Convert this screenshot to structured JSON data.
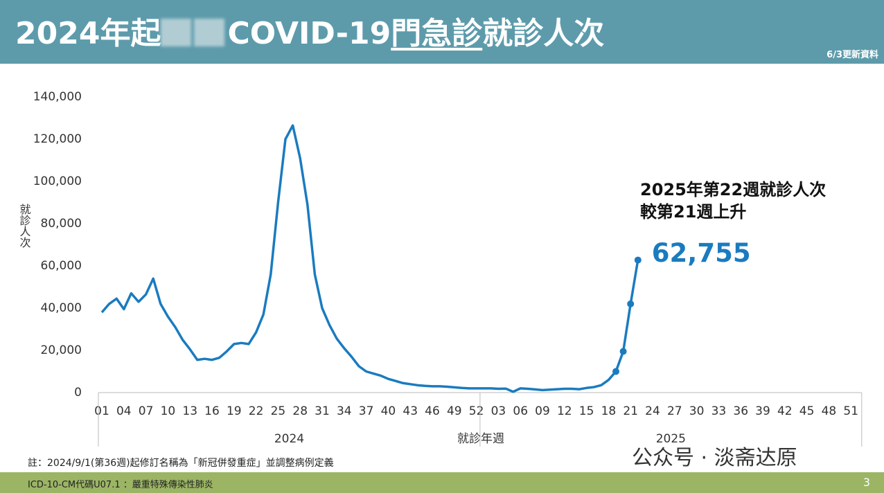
{
  "header": {
    "title_before": "2024年起",
    "title_mid": "COVID-19",
    "title_underlined": "門急診",
    "title_after": "就診人次",
    "update_note": "6/3更新資料"
  },
  "chart_data": {
    "type": "line",
    "y_label": "就診人次",
    "x_label": "就診年週",
    "groups": [
      {
        "label": "2024",
        "count": 52
      },
      {
        "label": "2025",
        "count": 52
      }
    ],
    "categories": [
      "01",
      null,
      null,
      "04",
      null,
      null,
      "07",
      null,
      null,
      "10",
      null,
      null,
      "13",
      null,
      null,
      "16",
      null,
      null,
      "19",
      null,
      null,
      "22",
      null,
      null,
      "25",
      null,
      null,
      "28",
      null,
      null,
      "31",
      null,
      null,
      "34",
      null,
      null,
      "37",
      null,
      null,
      "40",
      null,
      null,
      "43",
      null,
      null,
      "46",
      null,
      null,
      "49",
      null,
      null,
      "52",
      null,
      null,
      "03",
      null,
      null,
      "06",
      null,
      null,
      "09",
      null,
      null,
      "12",
      null,
      null,
      "15",
      null,
      null,
      "18",
      null,
      null,
      "21",
      null,
      null,
      "24",
      null,
      null,
      "27",
      null,
      null,
      "30",
      null,
      null,
      "33",
      null,
      null,
      "36",
      null,
      null,
      "39",
      null,
      null,
      "42",
      null,
      null,
      "45",
      null,
      null,
      "48",
      null,
      null,
      "51",
      null
    ],
    "series": [
      {
        "name": "就診人次",
        "color": "#1a7bbf",
        "values": [
          38000,
          42000,
          44500,
          39500,
          47000,
          43000,
          46500,
          54000,
          42000,
          36000,
          31000,
          25000,
          20500,
          15500,
          16000,
          15500,
          16500,
          19500,
          23000,
          23500,
          23000,
          28500,
          37000,
          56000,
          90000,
          120000,
          126500,
          111000,
          89000,
          56000,
          40000,
          32000,
          25500,
          21000,
          17000,
          12500,
          10000,
          9000,
          8000,
          6500,
          5500,
          4500,
          4000,
          3500,
          3200,
          3000,
          3000,
          2800,
          2500,
          2200,
          2000,
          2000,
          2000,
          2000,
          1800,
          1900,
          400,
          2000,
          1800,
          1500,
          1200,
          1400,
          1600,
          1800,
          1800,
          1600,
          2200,
          2600,
          3500,
          6000,
          10000,
          19500,
          42000,
          62755,
          null,
          null,
          null,
          null,
          null,
          null,
          null,
          null,
          null,
          null,
          null,
          null,
          null,
          null,
          null,
          null,
          null,
          null,
          null,
          null,
          null,
          null,
          null,
          null,
          null,
          null,
          null,
          null,
          null,
          null
        ],
        "value_labels": [
          null,
          null,
          null,
          null,
          null,
          null,
          null,
          null,
          null,
          null,
          null,
          null,
          null,
          null,
          null,
          null,
          null,
          null,
          null,
          null,
          null,
          null,
          null,
          null,
          null,
          null,
          null,
          null,
          null,
          null,
          null,
          null,
          null,
          null,
          null,
          null,
          null,
          null,
          null,
          null,
          null,
          null,
          null,
          null,
          null,
          null,
          null,
          null,
          null,
          null,
          null,
          null,
          null,
          null,
          null,
          null,
          null,
          null,
          null,
          null,
          null,
          null,
          null,
          null,
          null,
          null,
          null,
          null,
          null,
          null,
          null,
          null,
          null,
          "62,755",
          null,
          null,
          null,
          null,
          null,
          null,
          null,
          null,
          null,
          null,
          null,
          null,
          null,
          null,
          null,
          null,
          null,
          null,
          null,
          null,
          null,
          null,
          null,
          null,
          null,
          null,
          null,
          null,
          null,
          null
        ],
        "markers": [
          70,
          71,
          72,
          73
        ]
      }
    ],
    "ylim": [
      0,
      140000
    ],
    "yticks": [
      0,
      {
        "value": 20000,
        "label": "20,000"
      },
      {
        "value": 40000,
        "label": "40,000"
      },
      {
        "value": 60000,
        "label": "60,000"
      },
      {
        "value": 80000,
        "label": "80,000"
      },
      {
        "value": 100000,
        "label": "100,000"
      },
      {
        "value": 120000,
        "label": "120,000"
      },
      {
        "value": 140000,
        "label": "140,000"
      }
    ],
    "annotation": [
      "2025年第22週就診人次",
      "較第21週上升"
    ]
  },
  "footnote": "註：2024/9/1(第36週)起修訂名稱為「新冠併發重症」並調整病例定義",
  "footer": {
    "text": "ICD-10-CM代碼U07.1 ：嚴重特殊傳染性肺炎",
    "page": "3"
  },
  "watermark": "公众号 · 淡斋达原"
}
